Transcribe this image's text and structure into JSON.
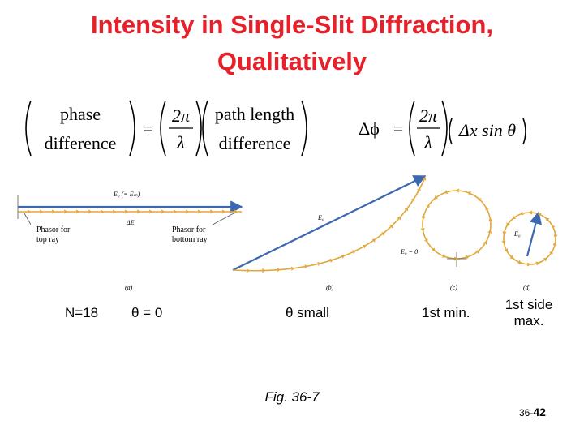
{
  "title": {
    "line1": "Intensity in Single-Slit Diffraction,",
    "line2": "Qualitatively"
  },
  "equation1": {
    "lhs_top": "phase",
    "lhs_bottom": "difference",
    "equals": "=",
    "frac_num": "2π",
    "frac_den": "λ",
    "rhs_top": "path length",
    "rhs_bottom": "difference"
  },
  "equation2": {
    "lhs": "Δϕ",
    "equals": "=",
    "frac_num": "2π",
    "frac_den": "λ",
    "rhs": "Δx sin θ"
  },
  "diagram": {
    "a_label_E0": "E₀  (= Eₘ)",
    "a_label_dE": "ΔE",
    "a_label_top": [
      "Phasor for",
      "top ray"
    ],
    "a_label_bottom": [
      "Phasor for",
      "bottom ray"
    ],
    "b_label_E": "E₀",
    "b_label_zero": "E₀ = 0",
    "d_label_E": "E₀",
    "panel_letters": [
      "(a)",
      "(b)",
      "(c)",
      "(d)"
    ]
  },
  "captions": {
    "n": "N=18",
    "theta_zero": "θ = 0",
    "theta_small": "θ small",
    "first_min": "1st min.",
    "first_side_max": [
      "1st side",
      "max."
    ]
  },
  "figure_label": "Fig. 36-7",
  "slide_number": {
    "chapter": "36-",
    "page": "42"
  },
  "colors": {
    "title": "#e8202a",
    "resultant": "#3b68b0",
    "phasor": "#e0a83a"
  }
}
